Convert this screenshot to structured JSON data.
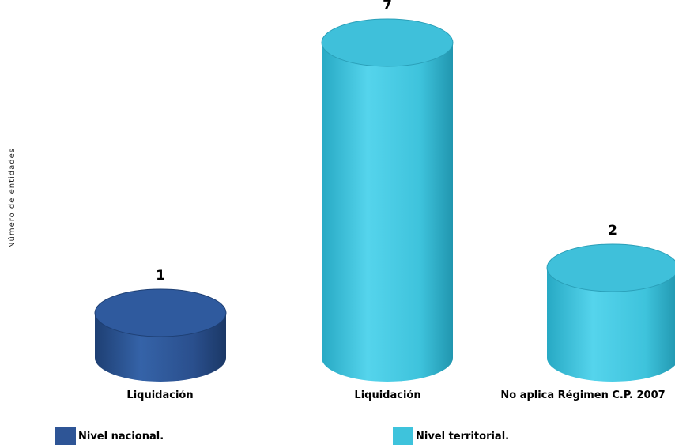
{
  "chart_data": {
    "type": "bar",
    "ylabel": "Número de entidades",
    "categories": [
      "Liquidación",
      "Liquidación",
      "No aplica Régimen C.P. 2007"
    ],
    "series": [
      {
        "name": "Nivel nacional.",
        "color": "#2E5596",
        "values": [
          1,
          null,
          null
        ]
      },
      {
        "name": "Nivel territorial.",
        "color": "#3EC3DC",
        "values": [
          null,
          7,
          2
        ]
      }
    ],
    "bar_values": [
      1,
      7,
      2
    ],
    "bar_series": [
      0,
      1,
      1
    ],
    "ylim": [
      0,
      7
    ],
    "grid": false,
    "legend_position": "bottom"
  }
}
